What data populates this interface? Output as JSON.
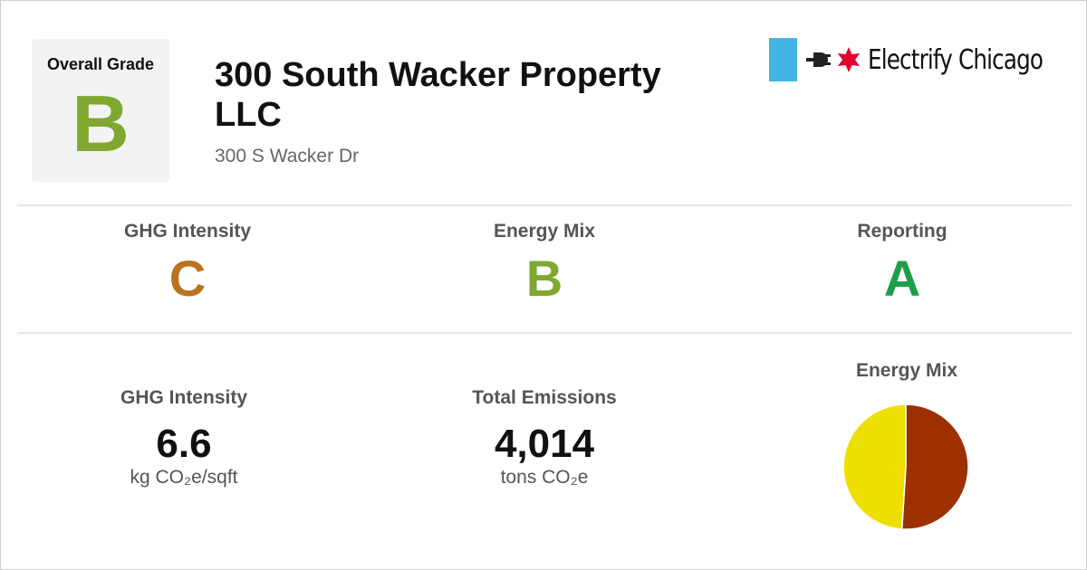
{
  "overall": {
    "label": "Overall Grade",
    "grade": "B",
    "grade_color": "#7fa831"
  },
  "building": {
    "name": "300 South Wacker Property LLC",
    "address": "300 S Wacker Dr"
  },
  "logo": {
    "text": "Electrify Chicago",
    "flag_color": "#41b6e6",
    "star_color": "#e4002b",
    "icons": [
      "plug-icon",
      "chicago-star-icon"
    ]
  },
  "grades": [
    {
      "label": "GHG Intensity",
      "grade": "C",
      "color": "#b8731f"
    },
    {
      "label": "Energy Mix",
      "grade": "B",
      "color": "#7fa831"
    },
    {
      "label": "Reporting",
      "grade": "A",
      "color": "#1f9e4a"
    }
  ],
  "stats": {
    "ghg_intensity": {
      "label": "GHG Intensity",
      "value": "6.6",
      "unit": "kg CO₂e/sqft"
    },
    "total_emissions": {
      "label": "Total Emissions",
      "value": "4,014",
      "unit": "tons CO₂e"
    }
  },
  "chart_data": {
    "type": "pie",
    "title": "Energy Mix",
    "slices": [
      {
        "value": 51,
        "color": "#9c3000"
      },
      {
        "value": 49,
        "color": "#ede000"
      }
    ]
  }
}
